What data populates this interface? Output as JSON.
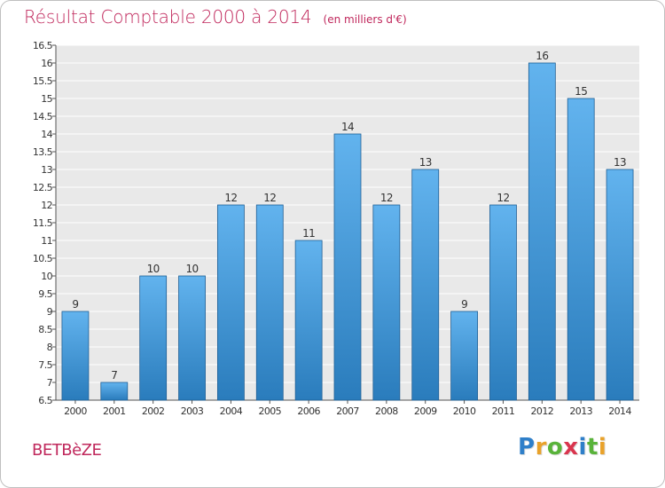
{
  "header": {
    "title": "Résultat Comptable 2000 à 2014",
    "subtitle": "(en milliers d'€)"
  },
  "commune": "BETBèZE",
  "brand": {
    "letters": [
      "P",
      "r",
      "o",
      "x",
      "i",
      "t",
      "i"
    ],
    "colors": [
      "#2f7fc9",
      "#e9a22a",
      "#59b33a",
      "#d9354e",
      "#2f7fc9",
      "#59b33a",
      "#e9a22a"
    ]
  },
  "colors": {
    "bar_top": "#62b3ee",
    "bar_bottom": "#2a7cbc",
    "plot_bg": "#e9e9e9",
    "grid": "#ffffff",
    "accent": "#c0285c"
  },
  "chart_data": {
    "type": "bar",
    "categories": [
      "2000",
      "2001",
      "2002",
      "2003",
      "2004",
      "2005",
      "2006",
      "2007",
      "2008",
      "2009",
      "2010",
      "2011",
      "2012",
      "2013",
      "2014"
    ],
    "values": [
      9,
      7,
      10,
      10,
      12,
      12,
      11,
      14,
      12,
      13,
      9,
      12,
      16,
      15,
      13
    ],
    "data_labels": [
      "9",
      "7",
      "10",
      "10",
      "12",
      "12",
      "11",
      "14",
      "12",
      "13",
      "9",
      "12",
      "16",
      "15",
      "13"
    ],
    "yticks": [
      6.5,
      7,
      7.5,
      8,
      8.5,
      9,
      9.5,
      10,
      10.5,
      11,
      11.5,
      12,
      12.5,
      13,
      13.5,
      14,
      14.5,
      15,
      15.5,
      16,
      16.5
    ],
    "ylim": [
      6.5,
      16.5
    ],
    "grid": true,
    "title": "Résultat Comptable 2000 à 2014",
    "xlabel": "",
    "ylabel": ""
  }
}
